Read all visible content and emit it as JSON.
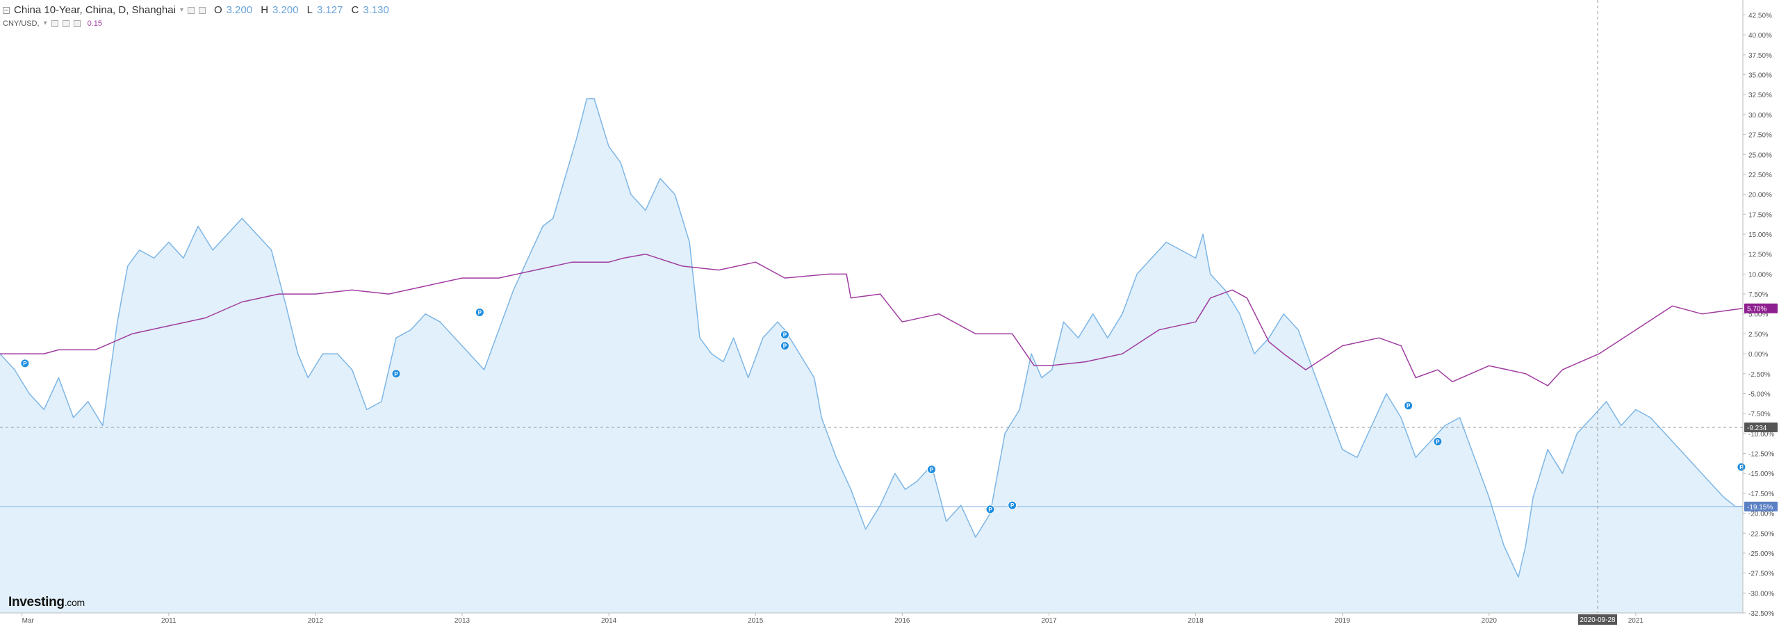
{
  "legend": {
    "title": "China 10-Year, China, D, Shanghai",
    "ohlc": [
      {
        "k": "O",
        "v": "3.200"
      },
      {
        "k": "H",
        "v": "3.200"
      },
      {
        "k": "L",
        "v": "3.127"
      },
      {
        "k": "C",
        "v": "3.130"
      }
    ],
    "overlay_name": "CNY/USD,",
    "overlay_value": "0.15"
  },
  "logo": {
    "main": "Investing",
    "suffix": ".com"
  },
  "crosshair": {
    "date_label": "2020-09-28",
    "price_label": "-9.234",
    "price_value": -9.234
  },
  "colors": {
    "bond": "#7eb6e6",
    "bond_fill": "#e1f0fa",
    "fx": "#a03ba0",
    "bond_tag": "#5b80c4",
    "fx_tag": "#8e1f8e",
    "crosshair_tag": "#555555"
  },
  "chart_data": {
    "type": "area",
    "x_unit": "year",
    "xlim": [
      2009.85,
      2021.73
    ],
    "ylim": [
      -32.5,
      43.5
    ],
    "y_unit": "%",
    "grid": false,
    "x_ticks": [
      {
        "label": "Mar",
        "x": 2010.0
      },
      {
        "label": "2011",
        "x": 2011.0
      },
      {
        "label": "2012",
        "x": 2012.0
      },
      {
        "label": "2013",
        "x": 2013.0
      },
      {
        "label": "2014",
        "x": 2014.0
      },
      {
        "label": "2015",
        "x": 2015.0
      },
      {
        "label": "2016",
        "x": 2016.0
      },
      {
        "label": "2017",
        "x": 2017.0
      },
      {
        "label": "2018",
        "x": 2018.0
      },
      {
        "label": "2019",
        "x": 2019.0
      },
      {
        "label": "2020",
        "x": 2020.0
      },
      {
        "label": "2021",
        "x": 2021.0
      }
    ],
    "y_ticks": [
      42.5,
      40.0,
      37.5,
      35.0,
      32.5,
      30.0,
      27.5,
      25.0,
      22.5,
      20.0,
      17.5,
      15.0,
      12.5,
      10.0,
      7.5,
      5.0,
      2.5,
      0.0,
      -2.5,
      -5.0,
      -7.5,
      -10.0,
      -12.5,
      -15.0,
      -17.5,
      -20.0,
      -22.5,
      -25.0,
      -27.5,
      -30.0,
      -32.5
    ],
    "series": [
      {
        "name": "China 10-Year",
        "style": "area",
        "last_label": "-19.15%",
        "last_value": -19.15,
        "x": [
          2009.85,
          2009.95,
          2010.05,
          2010.15,
          2010.25,
          2010.35,
          2010.45,
          2010.55,
          2010.65,
          2010.72,
          2010.8,
          2010.9,
          2011.0,
          2011.1,
          2011.2,
          2011.3,
          2011.4,
          2011.5,
          2011.6,
          2011.7,
          2011.8,
          2011.88,
          2011.95,
          2012.05,
          2012.15,
          2012.25,
          2012.35,
          2012.45,
          2012.55,
          2012.65,
          2012.75,
          2012.85,
          2012.95,
          2013.05,
          2013.15,
          2013.25,
          2013.35,
          2013.45,
          2013.55,
          2013.62,
          2013.7,
          2013.78,
          2013.85,
          2013.9,
          2014.0,
          2014.08,
          2014.15,
          2014.25,
          2014.35,
          2014.45,
          2014.55,
          2014.62,
          2014.7,
          2014.78,
          2014.85,
          2014.95,
          2015.05,
          2015.15,
          2015.2,
          2015.3,
          2015.4,
          2015.45,
          2015.55,
          2015.65,
          2015.75,
          2015.85,
          2015.95,
          2016.02,
          2016.1,
          2016.2,
          2016.3,
          2016.4,
          2016.5,
          2016.6,
          2016.7,
          2016.8,
          2016.88,
          2016.95,
          2017.02,
          2017.1,
          2017.2,
          2017.3,
          2017.4,
          2017.5,
          2017.6,
          2017.7,
          2017.8,
          2017.9,
          2018.0,
          2018.05,
          2018.1,
          2018.2,
          2018.3,
          2018.4,
          2018.5,
          2018.6,
          2018.7,
          2018.8,
          2018.9,
          2019.0,
          2019.1,
          2019.2,
          2019.3,
          2019.4,
          2019.5,
          2019.6,
          2019.7,
          2019.8,
          2019.9,
          2020.0,
          2020.1,
          2020.2,
          2020.25,
          2020.3,
          2020.4,
          2020.5,
          2020.6,
          2020.7,
          2020.8,
          2020.9,
          2021.0,
          2021.1,
          2021.2,
          2021.3,
          2021.4,
          2021.5,
          2021.6,
          2021.68,
          2021.73
        ],
        "y": [
          0,
          -2,
          -5,
          -7,
          -3,
          -8,
          -6,
          -9,
          4,
          11,
          13,
          12,
          14,
          12,
          16,
          13,
          15,
          17,
          15,
          13,
          6,
          0,
          -3,
          0,
          0,
          -2,
          -7,
          -6,
          2,
          3,
          5,
          4,
          2,
          0,
          -2,
          3,
          8,
          12,
          16,
          17,
          22,
          27,
          32,
          32,
          26,
          24,
          20,
          18,
          22,
          20,
          14,
          2,
          0,
          -1,
          2,
          -3,
          2,
          4,
          3,
          0,
          -3,
          -8,
          -13,
          -17,
          -22,
          -19,
          -15,
          -17,
          -16,
          -14,
          -21,
          -19,
          -23,
          -20,
          -10,
          -7,
          0,
          -3,
          -2,
          4,
          2,
          5,
          2,
          5,
          10,
          12,
          14,
          13,
          12,
          15,
          10,
          8,
          5,
          0,
          2,
          5,
          3,
          -2,
          -7,
          -12,
          -13,
          -9,
          -5,
          -8,
          -13,
          -11,
          -9,
          -8,
          -13,
          -18,
          -24,
          -28,
          -24,
          -18,
          -12,
          -15,
          -10,
          -8,
          -6,
          -9,
          -7,
          -8,
          -10,
          -12,
          -14,
          -16,
          -18,
          -19.15,
          -19.15
        ],
        "markers": [
          {
            "x": 2010.02,
            "y": -1.2
          },
          {
            "x": 2012.55,
            "y": -2.5
          },
          {
            "x": 2013.12,
            "y": 5.2
          },
          {
            "x": 2015.2,
            "y": 2.4
          },
          {
            "x": 2015.2,
            "y": 1.0
          },
          {
            "x": 2016.2,
            "y": -14.5
          },
          {
            "x": 2016.6,
            "y": -19.5
          },
          {
            "x": 2016.75,
            "y": -19.0
          },
          {
            "x": 2019.45,
            "y": -6.5
          },
          {
            "x": 2019.65,
            "y": -11.0
          },
          {
            "x": 2021.72,
            "y": -14.2
          }
        ]
      },
      {
        "name": "CNY/USD",
        "style": "line",
        "last_label": "5.70%",
        "last_value": 5.7,
        "x": [
          2009.85,
          2010.0,
          2010.15,
          2010.25,
          2010.5,
          2010.75,
          2011.0,
          2011.25,
          2011.5,
          2011.75,
          2012.0,
          2012.25,
          2012.5,
          2012.75,
          2013.0,
          2013.25,
          2013.5,
          2013.75,
          2014.0,
          2014.1,
          2014.25,
          2014.5,
          2014.75,
          2015.0,
          2015.2,
          2015.5,
          2015.62,
          2015.65,
          2015.85,
          2016.0,
          2016.25,
          2016.5,
          2016.75,
          2016.9,
          2017.0,
          2017.25,
          2017.5,
          2017.75,
          2018.0,
          2018.1,
          2018.25,
          2018.35,
          2018.5,
          2018.6,
          2018.75,
          2019.0,
          2019.25,
          2019.4,
          2019.5,
          2019.65,
          2019.75,
          2020.0,
          2020.25,
          2020.4,
          2020.5,
          2020.75,
          2021.0,
          2021.25,
          2021.45,
          2021.73
        ],
        "y": [
          0,
          0,
          0,
          0.5,
          0.5,
          2.5,
          3.5,
          4.5,
          6.5,
          7.5,
          7.5,
          8,
          7.5,
          8.5,
          9.5,
          9.5,
          10.5,
          11.5,
          11.5,
          12,
          12.5,
          11,
          10.5,
          11.5,
          9.5,
          10,
          10,
          7,
          7.5,
          4,
          5,
          2.5,
          2.5,
          -1.5,
          -1.5,
          -1,
          0,
          3,
          4,
          7,
          8,
          7,
          1.5,
          0,
          -2,
          1,
          2,
          1,
          -3,
          -2,
          -3.5,
          -1.5,
          -2.5,
          -4,
          -2,
          0,
          3,
          6,
          5,
          5.7
        ]
      }
    ]
  }
}
